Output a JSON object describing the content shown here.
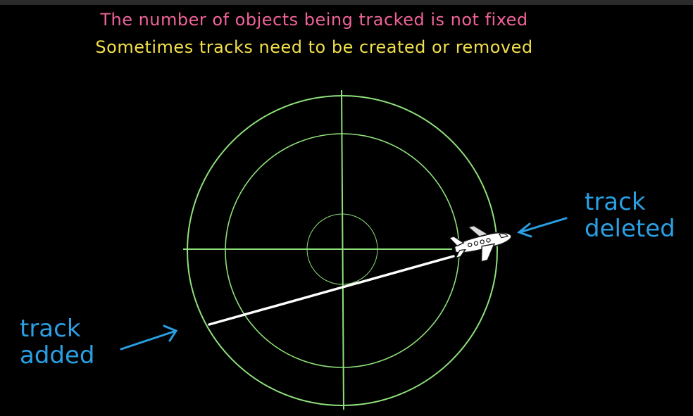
{
  "captions": {
    "line1": "The number of objects being tracked is not fixed",
    "line2": "Sometimes tracks need to be created or removed"
  },
  "labels": {
    "track_deleted": {
      "line1": "track",
      "line2": "deleted"
    },
    "track_added": {
      "line1": "track",
      "line2": "added"
    }
  },
  "colors": {
    "background": "#000000",
    "radar": "#8ee07a",
    "track_line": "#ffffff",
    "label_blue": "#2a9fe3",
    "caption_pink": "#f0629a",
    "caption_yellow": "#f2df4a"
  },
  "icons": {
    "aircraft": "airplane-icon"
  }
}
